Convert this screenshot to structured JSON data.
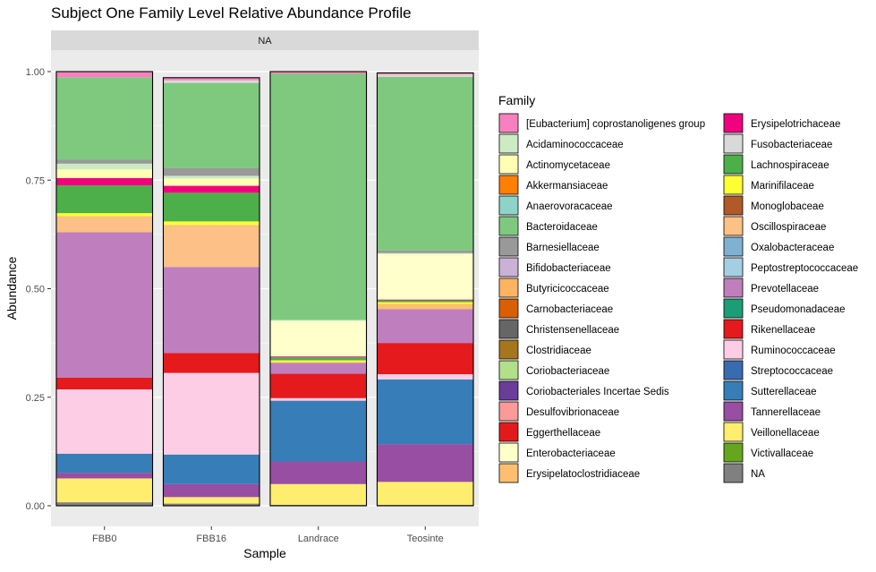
{
  "chart_data": {
    "type": "bar",
    "stacked": true,
    "title": "Subject One Family Level Relative Abundance Profile",
    "facet_label": "NA",
    "xlabel": "Sample",
    "ylabel": "Abundance",
    "ylim": [
      0,
      1
    ],
    "y_ticks": [
      "0.00",
      "0.25",
      "0.50",
      "0.75",
      "1.00"
    ],
    "grid": true,
    "legend_title": "Family",
    "legend_position": "right",
    "categories": [
      "FBB0",
      "FBB16",
      "Landrace",
      "Teosinte"
    ],
    "families": [
      {
        "name": "[Eubacterium] coprostanoligenes group",
        "color": "#F781BF"
      },
      {
        "name": "Acidaminococcaceae",
        "color": "#CCEBC5"
      },
      {
        "name": "Actinomycetaceae",
        "color": "#FFFFB3"
      },
      {
        "name": "Akkermansiaceae",
        "color": "#FF7F00"
      },
      {
        "name": "Anaerovoracaceae",
        "color": "#8DD3C7"
      },
      {
        "name": "Bacteroidaceae",
        "color": "#7FC97F"
      },
      {
        "name": "Barnesiellaceae",
        "color": "#999999"
      },
      {
        "name": "Bifidobacteriaceae",
        "color": "#CAB2D6"
      },
      {
        "name": "Butyricicoccaceae",
        "color": "#FDB462"
      },
      {
        "name": "Carnobacteriaceae",
        "color": "#D95F02"
      },
      {
        "name": "Christensenellaceae",
        "color": "#666666"
      },
      {
        "name": "Clostridiaceae",
        "color": "#A6761D"
      },
      {
        "name": "Coriobacteriaceae",
        "color": "#B2DF8A"
      },
      {
        "name": "Coriobacteriales Incertae Sedis",
        "color": "#6A3D9A"
      },
      {
        "name": "Desulfovibrionaceae",
        "color": "#FB9A99"
      },
      {
        "name": "Eggerthellaceae",
        "color": "#E31A1C"
      },
      {
        "name": "Enterobacteriaceae",
        "color": "#FFFFCC"
      },
      {
        "name": "Erysipelatoclostridiaceae",
        "color": "#FDBF6F"
      },
      {
        "name": "Erysipelotrichaceae",
        "color": "#F0027F"
      },
      {
        "name": "Fusobacteriaceae",
        "color": "#D9D9D9"
      },
      {
        "name": "Lachnospiraceae",
        "color": "#4DAF4A"
      },
      {
        "name": "Marinifilaceae",
        "color": "#FFFF33"
      },
      {
        "name": "Monoglobaceae",
        "color": "#B15928"
      },
      {
        "name": "Oscillospiraceae",
        "color": "#FDC086"
      },
      {
        "name": "Oxalobacteraceae",
        "color": "#80B1D3"
      },
      {
        "name": "Peptostreptococcaceae",
        "color": "#A6CEE3"
      },
      {
        "name": "Prevotellaceae",
        "color": "#BF7FBF"
      },
      {
        "name": "Pseudomonadaceae",
        "color": "#1B9E77"
      },
      {
        "name": "Rikenellaceae",
        "color": "#E41A1C"
      },
      {
        "name": "Ruminococcaceae",
        "color": "#FCCDE5"
      },
      {
        "name": "Streptococcaceae",
        "color": "#386CB0"
      },
      {
        "name": "Sutterellaceae",
        "color": "#377EB8"
      },
      {
        "name": "Tannerellaceae",
        "color": "#984EA3"
      },
      {
        "name": "Veillonellaceae",
        "color": "#FFED6F"
      },
      {
        "name": "Victivallaceae",
        "color": "#66A61E"
      },
      {
        "name": "NA",
        "color": "#808080"
      }
    ],
    "series": [
      {
        "name": "NA",
        "values": [
          0.008,
          0.005,
          0.002,
          0.002
        ]
      },
      {
        "name": "Veillonellaceae",
        "values": [
          0.055,
          0.015,
          0.048,
          0.053
        ]
      },
      {
        "name": "Tannerellaceae",
        "values": [
          0.013,
          0.03,
          0.052,
          0.087
        ]
      },
      {
        "name": "Sutterellaceae",
        "values": [
          0.044,
          0.068,
          0.14,
          0.149
        ]
      },
      {
        "name": "Ruminococcaceae",
        "values": [
          0.148,
          0.188,
          0.006,
          0.012
        ]
      },
      {
        "name": "Rikenellaceae",
        "values": [
          0.027,
          0.046,
          0.056,
          0.072
        ]
      },
      {
        "name": "Prevotellaceae",
        "values": [
          0.335,
          0.198,
          0.025,
          0.078
        ]
      },
      {
        "name": "Oscillospiraceae",
        "values": [
          0.037,
          0.097,
          0.0,
          0.0
        ]
      },
      {
        "name": "Erysipelatoclostridiaceae",
        "values": [
          0.0,
          0.0,
          0.002,
          0.012
        ]
      },
      {
        "name": "Marinifilaceae",
        "values": [
          0.007,
          0.008,
          0.004,
          0.004
        ]
      },
      {
        "name": "Lachnospiraceae",
        "values": [
          0.064,
          0.066,
          0.007,
          0.004
        ]
      },
      {
        "name": "Erysipelotrichaceae",
        "values": [
          0.017,
          0.016,
          0.002,
          0.002
        ]
      },
      {
        "name": "Actinomycetaceae",
        "values": [
          0.02,
          0.017,
          0.0,
          0.0
        ]
      },
      {
        "name": "Enterobacteriaceae",
        "values": [
          0.0,
          0.0,
          0.082,
          0.105
        ]
      },
      {
        "name": "Acidaminococcaceae",
        "values": [
          0.013,
          0.006,
          0.002,
          0.002
        ]
      },
      {
        "name": "Barnesiellaceae",
        "values": [
          0.009,
          0.018,
          0.0,
          0.006
        ]
      },
      {
        "name": "Bacteroidaceae",
        "values": [
          0.19,
          0.196,
          0.567,
          0.4
        ]
      },
      {
        "name": "Fusobacteriaceae",
        "values": [
          0.0,
          0.006,
          0.0,
          0.005
        ]
      },
      {
        "name": "[Eubacterium] coprostanoligenes group",
        "values": [
          0.013,
          0.006,
          0.003,
          0.002
        ]
      },
      {
        "name": "Desulfovibrionaceae",
        "values": [
          0.0,
          0.0,
          0.002,
          0.002
        ]
      }
    ]
  }
}
